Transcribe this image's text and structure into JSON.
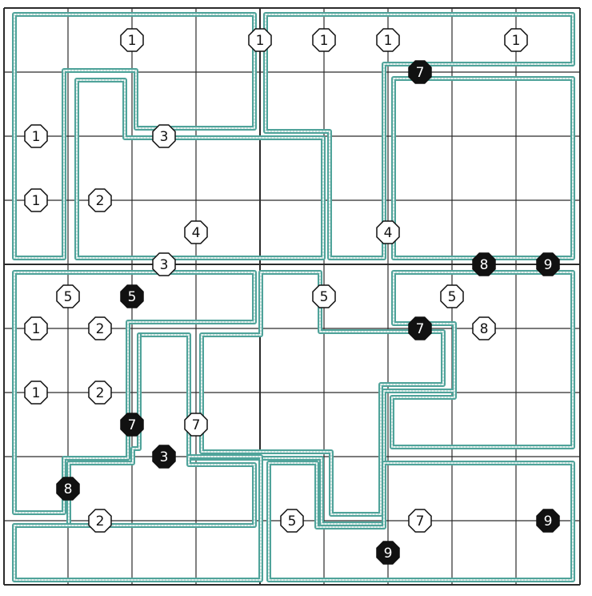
{
  "puzzle": {
    "colors": {
      "grid_line": "#2b2b2b",
      "region_outer": "#4fa39a",
      "region_inner": "#e8f2f0",
      "clue_white_fill": "#ffffff",
      "clue_black_fill": "#111111",
      "clue_stroke": "#111111"
    },
    "clues": [
      {
        "label": "1",
        "style": "white"
      },
      {
        "label": "1",
        "style": "white"
      },
      {
        "label": "1",
        "style": "white"
      },
      {
        "label": "1",
        "style": "white"
      },
      {
        "label": "1",
        "style": "white"
      },
      {
        "label": "7",
        "style": "black"
      },
      {
        "label": "1",
        "style": "white"
      },
      {
        "label": "3",
        "style": "white"
      },
      {
        "label": "1",
        "style": "white"
      },
      {
        "label": "2",
        "style": "white"
      },
      {
        "label": "4",
        "style": "white"
      },
      {
        "label": "4",
        "style": "white"
      },
      {
        "label": "3",
        "style": "white"
      },
      {
        "label": "8",
        "style": "black"
      },
      {
        "label": "9",
        "style": "black"
      },
      {
        "label": "5",
        "style": "white"
      },
      {
        "label": "5",
        "style": "black"
      },
      {
        "label": "5",
        "style": "white"
      },
      {
        "label": "5",
        "style": "white"
      },
      {
        "label": "1",
        "style": "white"
      },
      {
        "label": "2",
        "style": "white"
      },
      {
        "label": "7",
        "style": "black"
      },
      {
        "label": "8",
        "style": "white"
      },
      {
        "label": "1",
        "style": "white"
      },
      {
        "label": "2",
        "style": "white"
      },
      {
        "label": "7",
        "style": "black"
      },
      {
        "label": "7",
        "style": "white"
      },
      {
        "label": "3",
        "style": "black"
      },
      {
        "label": "8",
        "style": "black"
      },
      {
        "label": "2",
        "style": "white"
      },
      {
        "label": "5",
        "style": "white"
      },
      {
        "label": "7",
        "style": "white"
      },
      {
        "label": "9",
        "style": "black"
      },
      {
        "label": "9",
        "style": "black"
      }
    ]
  }
}
